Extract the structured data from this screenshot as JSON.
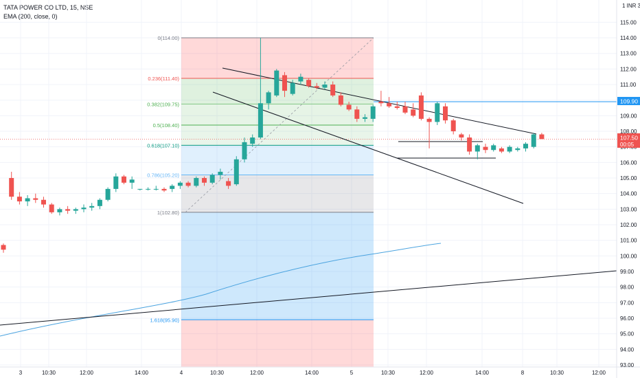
{
  "header": {
    "symbol_line": "TATA POWER CO LTD, 15, NSE",
    "indicator_line": "EMA (200, close, 0)",
    "currency": "1 INR 3"
  },
  "price_badges": {
    "level_label": "109.90",
    "last_price": "107.50",
    "countdown": "00:05"
  },
  "colors": {
    "bull": "#26a69a",
    "bear": "#ef5350",
    "ema": "#4aa3df",
    "trendline": "#131722",
    "level": "#2196f3"
  },
  "chart_data": {
    "type": "candlestick",
    "ylim": [
      93,
      116
    ],
    "y_ticks": [
      "93.00",
      "94.00",
      "95.00",
      "96.00",
      "97.00",
      "98.00",
      "99.00",
      "100.00",
      "101.00",
      "102.00",
      "103.00",
      "104.00",
      "105.00",
      "106.00",
      "107.00",
      "108.00",
      "109.00",
      "110.00",
      "111.00",
      "112.00",
      "113.00",
      "114.00",
      "115.00"
    ],
    "x_ticks": [
      "3",
      "10:30",
      "12:00",
      "14:00",
      "4",
      "10:30",
      "12:00",
      "14:00",
      "5",
      "10:30",
      "12:00",
      "14:00",
      "8",
      "10:30",
      "12:00"
    ],
    "fib_levels": [
      {
        "label": "0(114.00)",
        "value": 114.0
      },
      {
        "label": "0.236(111.40)",
        "value": 111.4
      },
      {
        "label": "0.382(109.75)",
        "value": 109.75
      },
      {
        "label": "0.5(108.40)",
        "value": 108.4
      },
      {
        "label": "0.618(107.10)",
        "value": 107.1
      },
      {
        "label": "0.786(105.20)",
        "value": 105.2
      },
      {
        "label": "1(102.80)",
        "value": 102.8
      },
      {
        "label": "1.618(95.90)",
        "value": 95.9
      }
    ],
    "horizontal_level": 109.9,
    "last_price": 107.5,
    "candles": [
      [
        100.7,
        100.8,
        100.2,
        100.4
      ],
      [
        105.0,
        105.4,
        103.6,
        103.8
      ],
      [
        103.8,
        104.1,
        103.3,
        103.5
      ],
      [
        103.5,
        103.9,
        103.2,
        103.7
      ],
      [
        103.7,
        104.0,
        103.4,
        103.6
      ],
      [
        103.6,
        103.8,
        103.1,
        103.3
      ],
      [
        103.3,
        103.4,
        102.7,
        102.8
      ],
      [
        102.8,
        103.1,
        102.6,
        103.0
      ],
      [
        103.0,
        103.2,
        102.7,
        102.9
      ],
      [
        102.9,
        103.1,
        102.7,
        103.0
      ],
      [
        103.0,
        103.3,
        102.8,
        103.1
      ],
      [
        103.1,
        103.4,
        102.9,
        103.2
      ],
      [
        103.2,
        103.7,
        103.0,
        103.6
      ],
      [
        103.6,
        104.4,
        103.5,
        104.3
      ],
      [
        104.3,
        105.3,
        104.1,
        105.1
      ],
      [
        105.1,
        105.2,
        104.6,
        104.7
      ],
      [
        104.7,
        105.1,
        104.3,
        104.9
      ],
      [
        104.3,
        104.3,
        104.2,
        104.3
      ],
      [
        104.3,
        104.4,
        104.2,
        104.3
      ],
      [
        104.3,
        104.5,
        104.2,
        104.3
      ],
      [
        104.3,
        104.4,
        104.1,
        104.2
      ],
      [
        104.3,
        104.6,
        104.1,
        104.5
      ],
      [
        104.5,
        104.8,
        104.3,
        104.7
      ],
      [
        104.7,
        104.8,
        104.4,
        104.5
      ],
      [
        104.5,
        105.1,
        104.4,
        105.0
      ],
      [
        105.0,
        105.1,
        104.5,
        104.7
      ],
      [
        104.7,
        105.3,
        104.6,
        105.2
      ],
      [
        105.2,
        105.6,
        104.9,
        105.4
      ],
      [
        104.8,
        105.0,
        104.3,
        104.5
      ],
      [
        104.6,
        106.4,
        104.5,
        106.2
      ],
      [
        106.2,
        107.6,
        106.0,
        107.3
      ],
      [
        107.2,
        107.8,
        107.0,
        107.6
      ],
      [
        107.6,
        114.0,
        107.5,
        109.8
      ],
      [
        109.8,
        110.6,
        109.4,
        110.5
      ],
      [
        110.3,
        112.0,
        110.2,
        111.9
      ],
      [
        111.6,
        111.8,
        110.2,
        110.6
      ],
      [
        110.4,
        111.3,
        110.3,
        111.1
      ],
      [
        111.2,
        111.7,
        111.0,
        111.5
      ],
      [
        111.3,
        111.4,
        110.8,
        110.9
      ],
      [
        110.9,
        111.1,
        110.7,
        110.8
      ],
      [
        110.8,
        111.2,
        110.7,
        111.0
      ],
      [
        111.0,
        111.2,
        110.2,
        110.3
      ],
      [
        110.3,
        110.5,
        109.6,
        109.7
      ],
      [
        109.7,
        109.9,
        109.3,
        109.4
      ],
      [
        109.4,
        109.6,
        108.6,
        108.8
      ],
      [
        108.8,
        109.1,
        108.6,
        108.9
      ],
      [
        108.8,
        109.7,
        108.6,
        109.6
      ],
      [
        109.9,
        110.6,
        109.6,
        109.8
      ],
      [
        109.8,
        110.2,
        109.5,
        109.6
      ],
      [
        109.6,
        109.9,
        109.4,
        109.5
      ],
      [
        109.6,
        109.9,
        109.1,
        109.2
      ],
      [
        109.4,
        109.8,
        108.9,
        109.0
      ],
      [
        110.3,
        110.5,
        108.7,
        108.8
      ],
      [
        108.8,
        108.9,
        106.9,
        108.6
      ],
      [
        108.6,
        109.9,
        108.4,
        109.8
      ],
      [
        109.6,
        109.8,
        108.5,
        108.7
      ],
      [
        108.7,
        108.8,
        107.8,
        108.0
      ],
      [
        107.8,
        107.9,
        107.4,
        107.6
      ],
      [
        107.6,
        107.8,
        106.5,
        106.7
      ],
      [
        106.7,
        107.2,
        106.2,
        107.1
      ],
      [
        107.0,
        107.2,
        106.6,
        106.8
      ],
      [
        106.8,
        107.2,
        106.7,
        107.1
      ],
      [
        106.9,
        107.0,
        106.6,
        106.7
      ],
      [
        106.7,
        107.1,
        106.6,
        107.0
      ],
      [
        106.8,
        107.0,
        106.7,
        106.9
      ],
      [
        106.9,
        107.3,
        106.7,
        107.2
      ],
      [
        107.0,
        107.9,
        106.9,
        107.8
      ],
      [
        107.8,
        107.9,
        107.5,
        107.5
      ]
    ]
  }
}
